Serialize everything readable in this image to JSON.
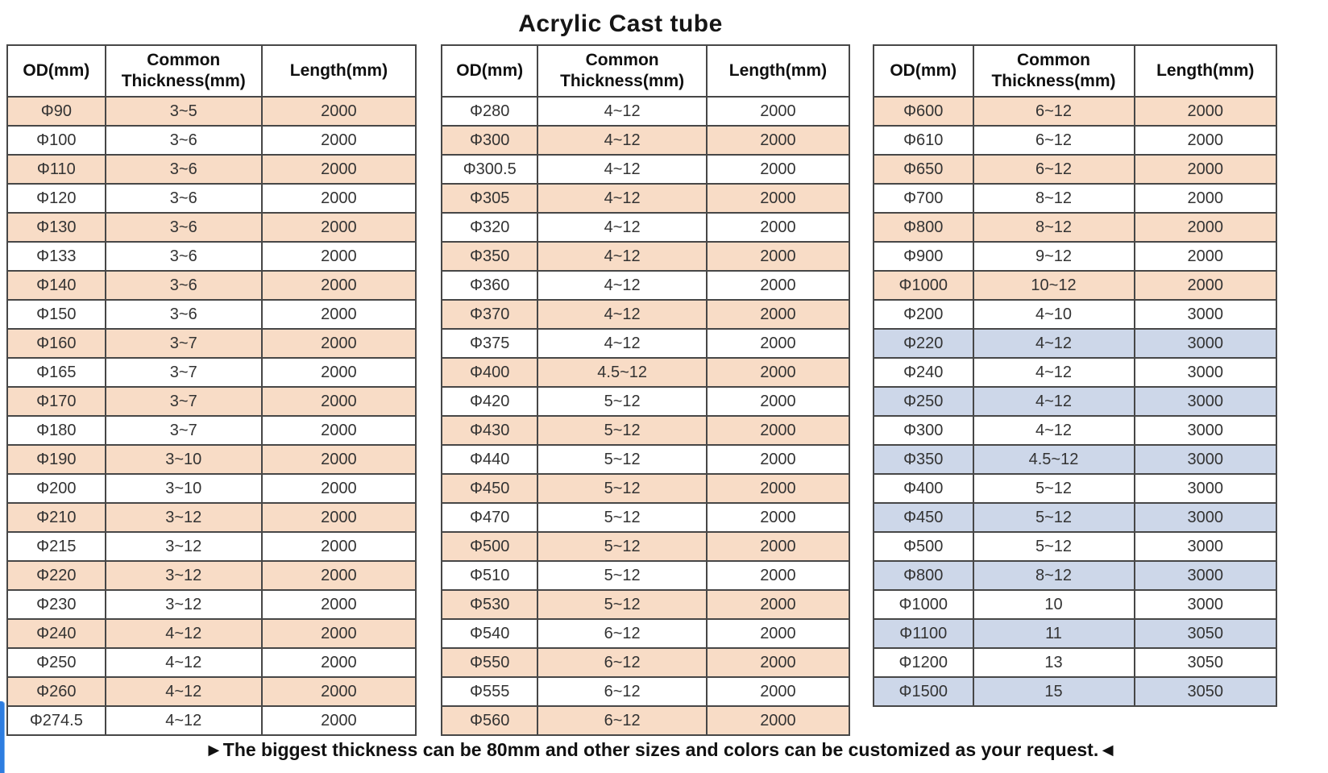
{
  "title": "Acrylic Cast tube",
  "footer": "►The biggest thickness can be 80mm and other sizes and colors can be customized as your request.◄",
  "columns": [
    "OD(mm)",
    "Common Thickness(mm)",
    "Length(mm)"
  ],
  "highlight_colors": {
    "pink": "#f8dcc6",
    "blue": "#cdd7e9"
  },
  "tables": [
    {
      "rows": [
        {
          "od": "Φ90",
          "thickness": "3~5",
          "length": "2000",
          "hl": "pink"
        },
        {
          "od": "Φ100",
          "thickness": "3~6",
          "length": "2000",
          "hl": ""
        },
        {
          "od": "Φ110",
          "thickness": "3~6",
          "length": "2000",
          "hl": "pink"
        },
        {
          "od": "Φ120",
          "thickness": "3~6",
          "length": "2000",
          "hl": ""
        },
        {
          "od": "Φ130",
          "thickness": "3~6",
          "length": "2000",
          "hl": "pink"
        },
        {
          "od": "Φ133",
          "thickness": "3~6",
          "length": "2000",
          "hl": ""
        },
        {
          "od": "Φ140",
          "thickness": "3~6",
          "length": "2000",
          "hl": "pink"
        },
        {
          "od": "Φ150",
          "thickness": "3~6",
          "length": "2000",
          "hl": ""
        },
        {
          "od": "Φ160",
          "thickness": "3~7",
          "length": "2000",
          "hl": "pink"
        },
        {
          "od": "Φ165",
          "thickness": "3~7",
          "length": "2000",
          "hl": ""
        },
        {
          "od": "Φ170",
          "thickness": "3~7",
          "length": "2000",
          "hl": "pink"
        },
        {
          "od": "Φ180",
          "thickness": "3~7",
          "length": "2000",
          "hl": ""
        },
        {
          "od": "Φ190",
          "thickness": "3~10",
          "length": "2000",
          "hl": "pink"
        },
        {
          "od": "Φ200",
          "thickness": "3~10",
          "length": "2000",
          "hl": ""
        },
        {
          "od": "Φ210",
          "thickness": "3~12",
          "length": "2000",
          "hl": "pink"
        },
        {
          "od": "Φ215",
          "thickness": "3~12",
          "length": "2000",
          "hl": ""
        },
        {
          "od": "Φ220",
          "thickness": "3~12",
          "length": "2000",
          "hl": "pink"
        },
        {
          "od": "Φ230",
          "thickness": "3~12",
          "length": "2000",
          "hl": ""
        },
        {
          "od": "Φ240",
          "thickness": "4~12",
          "length": "2000",
          "hl": "pink"
        },
        {
          "od": "Φ250",
          "thickness": "4~12",
          "length": "2000",
          "hl": ""
        },
        {
          "od": "Φ260",
          "thickness": "4~12",
          "length": "2000",
          "hl": "pink"
        },
        {
          "od": "Φ274.5",
          "thickness": "4~12",
          "length": "2000",
          "hl": ""
        }
      ]
    },
    {
      "rows": [
        {
          "od": "Φ280",
          "thickness": "4~12",
          "length": "2000",
          "hl": ""
        },
        {
          "od": "Φ300",
          "thickness": "4~12",
          "length": "2000",
          "hl": "pink"
        },
        {
          "od": "Φ300.5",
          "thickness": "4~12",
          "length": "2000",
          "hl": ""
        },
        {
          "od": "Φ305",
          "thickness": "4~12",
          "length": "2000",
          "hl": "pink"
        },
        {
          "od": "Φ320",
          "thickness": "4~12",
          "length": "2000",
          "hl": ""
        },
        {
          "od": "Φ350",
          "thickness": "4~12",
          "length": "2000",
          "hl": "pink"
        },
        {
          "od": "Φ360",
          "thickness": "4~12",
          "length": "2000",
          "hl": ""
        },
        {
          "od": "Φ370",
          "thickness": "4~12",
          "length": "2000",
          "hl": "pink"
        },
        {
          "od": "Φ375",
          "thickness": "4~12",
          "length": "2000",
          "hl": ""
        },
        {
          "od": "Φ400",
          "thickness": "4.5~12",
          "length": "2000",
          "hl": "pink"
        },
        {
          "od": "Φ420",
          "thickness": "5~12",
          "length": "2000",
          "hl": ""
        },
        {
          "od": "Φ430",
          "thickness": "5~12",
          "length": "2000",
          "hl": "pink"
        },
        {
          "od": "Φ440",
          "thickness": "5~12",
          "length": "2000",
          "hl": ""
        },
        {
          "od": "Φ450",
          "thickness": "5~12",
          "length": "2000",
          "hl": "pink"
        },
        {
          "od": "Φ470",
          "thickness": "5~12",
          "length": "2000",
          "hl": ""
        },
        {
          "od": "Φ500",
          "thickness": "5~12",
          "length": "2000",
          "hl": "pink"
        },
        {
          "od": "Φ510",
          "thickness": "5~12",
          "length": "2000",
          "hl": ""
        },
        {
          "od": "Φ530",
          "thickness": "5~12",
          "length": "2000",
          "hl": "pink"
        },
        {
          "od": "Φ540",
          "thickness": "6~12",
          "length": "2000",
          "hl": ""
        },
        {
          "od": "Φ550",
          "thickness": "6~12",
          "length": "2000",
          "hl": "pink"
        },
        {
          "od": "Φ555",
          "thickness": "6~12",
          "length": "2000",
          "hl": ""
        },
        {
          "od": "Φ560",
          "thickness": "6~12",
          "length": "2000",
          "hl": "pink"
        }
      ]
    },
    {
      "rows": [
        {
          "od": "Φ600",
          "thickness": "6~12",
          "length": "2000",
          "hl": "pink"
        },
        {
          "od": "Φ610",
          "thickness": "6~12",
          "length": "2000",
          "hl": ""
        },
        {
          "od": "Φ650",
          "thickness": "6~12",
          "length": "2000",
          "hl": "pink"
        },
        {
          "od": "Φ700",
          "thickness": "8~12",
          "length": "2000",
          "hl": ""
        },
        {
          "od": "Φ800",
          "thickness": "8~12",
          "length": "2000",
          "hl": "pink"
        },
        {
          "od": "Φ900",
          "thickness": "9~12",
          "length": "2000",
          "hl": ""
        },
        {
          "od": "Φ1000",
          "thickness": "10~12",
          "length": "2000",
          "hl": "pink"
        },
        {
          "od": "Φ200",
          "thickness": "4~10",
          "length": "3000",
          "hl": ""
        },
        {
          "od": "Φ220",
          "thickness": "4~12",
          "length": "3000",
          "hl": "blue"
        },
        {
          "od": "Φ240",
          "thickness": "4~12",
          "length": "3000",
          "hl": ""
        },
        {
          "od": "Φ250",
          "thickness": "4~12",
          "length": "3000",
          "hl": "blue"
        },
        {
          "od": "Φ300",
          "thickness": "4~12",
          "length": "3000",
          "hl": ""
        },
        {
          "od": "Φ350",
          "thickness": "4.5~12",
          "length": "3000",
          "hl": "blue"
        },
        {
          "od": "Φ400",
          "thickness": "5~12",
          "length": "3000",
          "hl": ""
        },
        {
          "od": "Φ450",
          "thickness": "5~12",
          "length": "3000",
          "hl": "blue"
        },
        {
          "od": "Φ500",
          "thickness": "5~12",
          "length": "3000",
          "hl": ""
        },
        {
          "od": "Φ800",
          "thickness": "8~12",
          "length": "3000",
          "hl": "blue"
        },
        {
          "od": "Φ1000",
          "thickness": "10",
          "length": "3000",
          "hl": ""
        },
        {
          "od": "Φ1100",
          "thickness": "11",
          "length": "3050",
          "hl": "blue"
        },
        {
          "od": "Φ1200",
          "thickness": "13",
          "length": "3050",
          "hl": ""
        },
        {
          "od": "Φ1500",
          "thickness": "15",
          "length": "3050",
          "hl": "blue"
        }
      ]
    }
  ]
}
